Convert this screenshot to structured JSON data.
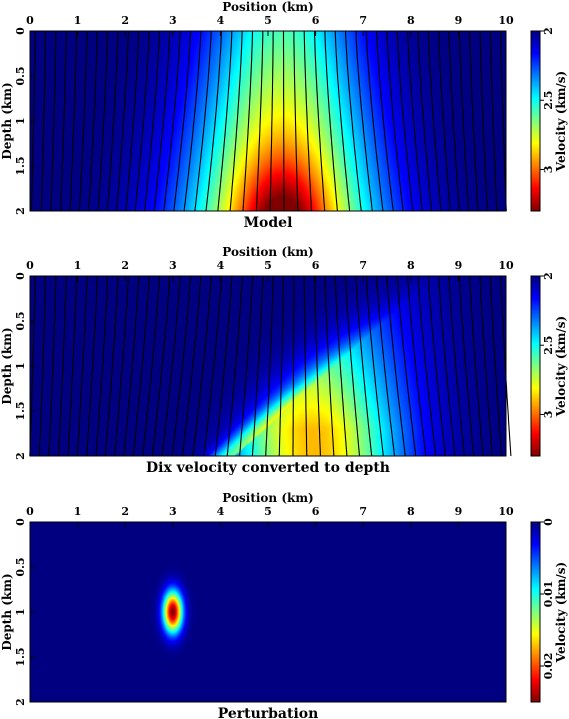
{
  "colors": {
    "colormap": "jet",
    "contour": "#000000",
    "frame": "#000000"
  },
  "chart_data": [
    {
      "type": "heatmap",
      "title": "Model",
      "xlabel": "Position (km)",
      "ylabel": "Depth (km)",
      "xlim": [
        0,
        10
      ],
      "ylim": [
        0,
        2
      ],
      "x_ticks": [
        "0",
        "1",
        "2",
        "3",
        "4",
        "5",
        "6",
        "7",
        "8",
        "9",
        "10"
      ],
      "y_ticks": [
        "0",
        "0.5",
        "1",
        "1.5",
        "2"
      ],
      "colorbar": {
        "label": "Velocity (km/s)",
        "ticks": [
          "2",
          "2.5",
          "3"
        ],
        "range": [
          2.0,
          3.3
        ]
      },
      "field": {
        "kind": "model",
        "background": 2.0,
        "anomaly_center_x": 5.3,
        "anomaly_bottom_velocity": 3.3
      },
      "contour_count": 46
    },
    {
      "type": "heatmap",
      "title": "Dix velocity converted to depth",
      "xlabel": "Position (km)",
      "ylabel": "Depth (km)",
      "xlim": [
        0,
        10
      ],
      "ylim": [
        0,
        2
      ],
      "x_ticks": [
        "0",
        "1",
        "2",
        "3",
        "4",
        "5",
        "6",
        "7",
        "8",
        "9",
        "10"
      ],
      "y_ticks": [
        "0",
        "0.5",
        "1",
        "1.5",
        "2"
      ],
      "colorbar": {
        "label": "Velocity (km/s)",
        "ticks": [
          "2",
          "2.5",
          "3"
        ],
        "range": [
          2.0,
          3.3
        ]
      },
      "field": {
        "kind": "dix",
        "background": 2.0,
        "anomaly_center_x": 5.5,
        "max_velocity": 2.95
      },
      "contour_count": 46
    },
    {
      "type": "heatmap",
      "title": "Perturbation",
      "xlabel": "Position (km)",
      "ylabel": "Depth (km)",
      "xlim": [
        0,
        10
      ],
      "ylim": [
        0,
        2
      ],
      "x_ticks": [
        "0",
        "1",
        "2",
        "3",
        "4",
        "5",
        "6",
        "7",
        "8",
        "9",
        "10"
      ],
      "y_ticks": [
        "0",
        "0.5",
        "1",
        "1.5",
        "2"
      ],
      "colorbar": {
        "label": "Velocity (km/s)",
        "ticks": [
          "0",
          "0.01",
          "0.02"
        ],
        "range": [
          0,
          0.025
        ]
      },
      "field": {
        "kind": "perturbation",
        "center_x": 3.0,
        "center_z": 1.0,
        "peak": 0.025
      },
      "contour_count": 0
    }
  ]
}
